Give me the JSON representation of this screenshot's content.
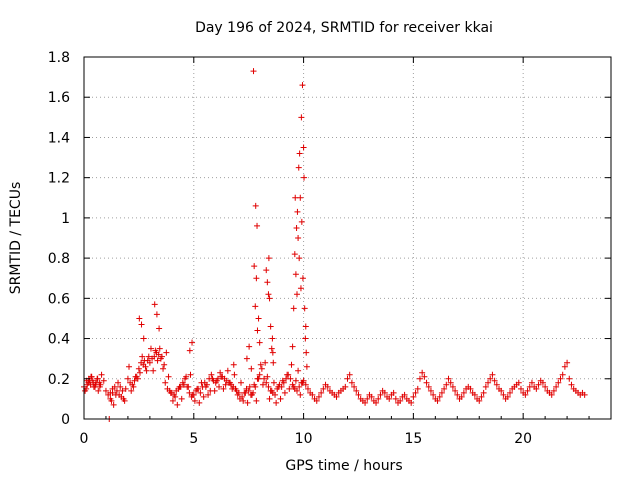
{
  "chart_data": {
    "type": "scatter",
    "title": "Day 196 of 2024, SRMTID for receiver kkai",
    "xlabel": "GPS time / hours",
    "ylabel": "SRMTID / TECUs",
    "xlim": [
      0,
      24
    ],
    "ylim": [
      0,
      1.8
    ],
    "xticks": [
      0,
      5,
      10,
      15,
      20
    ],
    "xtick_labels": [
      "0",
      "5",
      "10",
      "15",
      "20"
    ],
    "yticks": [
      0,
      0.2,
      0.4,
      0.6,
      0.8,
      1.0,
      1.2,
      1.4,
      1.6,
      1.8
    ],
    "ytick_labels": [
      "0",
      "0.2",
      "0.4",
      "0.6",
      "0.8",
      "1",
      "1.2",
      "1.4",
      "1.6",
      "1.8"
    ],
    "grid": true,
    "marker": "+",
    "marker_color": "#e00000",
    "series": [
      {
        "name": "SRMTID",
        "x": [
          0.0,
          0.1,
          0.2,
          0.3,
          0.4,
          0.5,
          0.6,
          0.7,
          0.8,
          0.9,
          1.0,
          1.1,
          1.2,
          1.3,
          1.4,
          1.5,
          1.6,
          1.7,
          1.8,
          1.9,
          2.0,
          2.1,
          2.2,
          2.3,
          2.4,
          2.5,
          2.6,
          2.7,
          2.8,
          2.9,
          3.0,
          3.1,
          3.2,
          3.3,
          3.4,
          3.5,
          3.6,
          3.7,
          3.8,
          3.9,
          4.0,
          4.1,
          4.2,
          4.3,
          4.4,
          4.5,
          4.6,
          4.7,
          4.8,
          4.9,
          5.0,
          5.1,
          5.2,
          5.3,
          5.4,
          5.5,
          5.6,
          5.7,
          5.8,
          5.9,
          6.0,
          6.1,
          6.2,
          6.3,
          6.4,
          6.5,
          6.6,
          6.7,
          6.8,
          6.9,
          7.0,
          7.1,
          7.2,
          7.3,
          7.4,
          7.5,
          7.6,
          7.7,
          7.8,
          7.9,
          8.0,
          8.1,
          8.2,
          8.3,
          8.4,
          8.5,
          8.6,
          8.7,
          8.8,
          8.9,
          9.0,
          9.1,
          9.2,
          9.3,
          9.4,
          9.5,
          9.6,
          9.7,
          9.8,
          9.9,
          10.0,
          10.1,
          10.2,
          10.3,
          10.4,
          10.5,
          10.6,
          10.7,
          10.8,
          10.9,
          11.0,
          11.1,
          11.2,
          11.3,
          11.4,
          11.5,
          11.6,
          11.7,
          11.8,
          11.9,
          12.0,
          12.1,
          12.2,
          12.3,
          12.4,
          12.5,
          12.6,
          12.7,
          12.8,
          12.9,
          13.0,
          13.1,
          13.2,
          13.3,
          13.4,
          13.5,
          13.6,
          13.7,
          13.8,
          13.9,
          14.0,
          14.1,
          14.2,
          14.3,
          14.4,
          14.5,
          14.6,
          14.7,
          14.8,
          14.9,
          15.0,
          15.1,
          15.2,
          15.3,
          15.4,
          15.5,
          15.6,
          15.7,
          15.8,
          15.9,
          16.0,
          16.1,
          16.2,
          16.3,
          16.4,
          16.5,
          16.6,
          16.7,
          16.8,
          16.9,
          17.0,
          17.1,
          17.2,
          17.3,
          17.4,
          17.5,
          17.6,
          17.7,
          17.8,
          17.9,
          18.0,
          18.1,
          18.2,
          18.3,
          18.4,
          18.5,
          18.6,
          18.7,
          18.8,
          18.9,
          19.0,
          19.1,
          19.2,
          19.3,
          19.4,
          19.5,
          19.6,
          19.7,
          19.8,
          19.9,
          20.0,
          20.1,
          20.2,
          20.3,
          20.4,
          20.5,
          20.6,
          20.7,
          20.8,
          20.9,
          21.0,
          21.1,
          21.2,
          21.3,
          21.4,
          21.5,
          21.6,
          21.7,
          21.8,
          21.9,
          22.0,
          22.1,
          22.2,
          22.3,
          22.4,
          22.5,
          22.6,
          22.7,
          22.8,
          0.05,
          0.15,
          0.25,
          0.35,
          0.45,
          0.55,
          0.65,
          0.75,
          1.15,
          1.2,
          1.25,
          1.3,
          1.35,
          1.45,
          1.55,
          1.65,
          1.75,
          1.85,
          2.05,
          2.15,
          2.25,
          2.35,
          2.45,
          2.55,
          2.65,
          2.75,
          2.85,
          2.95,
          3.05,
          3.15,
          3.25,
          3.35,
          3.45,
          3.55,
          3.65,
          3.75,
          3.85,
          3.95,
          4.05,
          4.15,
          4.25,
          4.35,
          4.45,
          4.55,
          4.65,
          4.75,
          4.85,
          4.95,
          5.05,
          5.15,
          5.25,
          5.35,
          5.45,
          5.55,
          5.65,
          5.75,
          5.85,
          5.95,
          6.05,
          6.15,
          6.25,
          6.35,
          6.45,
          6.55,
          6.65,
          6.75,
          6.85,
          6.95,
          7.05,
          7.15,
          7.25,
          7.35,
          7.45,
          7.55,
          7.65,
          7.75,
          7.85,
          7.95,
          8.05,
          8.15,
          8.25,
          8.35,
          8.45,
          8.55,
          8.65,
          8.75,
          8.85,
          8.95,
          9.05,
          9.15,
          9.25,
          9.35,
          9.45,
          9.55,
          9.65,
          9.75,
          9.85,
          9.95,
          0.12,
          0.22,
          0.32,
          0.42,
          0.52,
          0.62,
          0.72,
          2.52,
          2.62,
          2.72,
          3.22,
          3.32,
          3.42,
          4.82,
          4.92,
          6.82,
          7.42,
          7.52,
          7.62,
          7.72,
          7.75,
          7.8,
          7.82,
          7.85,
          7.88,
          7.9,
          7.95,
          8.0,
          8.3,
          8.35,
          8.4,
          8.42,
          8.45,
          8.5,
          8.55,
          8.58,
          8.6,
          8.62,
          9.5,
          9.55,
          9.6,
          9.62,
          9.65,
          9.68,
          9.7,
          9.72,
          9.75,
          9.78,
          9.8,
          9.82,
          9.85,
          9.88,
          9.9,
          9.92,
          9.95,
          9.97,
          10.0,
          10.02,
          10.05,
          10.08,
          10.1,
          10.12,
          10.15
        ],
        "y": [
          0.16,
          0.15,
          0.18,
          0.17,
          0.19,
          0.16,
          0.2,
          0.18,
          0.22,
          0.19,
          0.14,
          0.12,
          0.1,
          0.13,
          0.16,
          0.14,
          0.12,
          0.11,
          0.1,
          0.15,
          0.2,
          0.18,
          0.17,
          0.19,
          0.21,
          0.25,
          0.28,
          0.27,
          0.26,
          0.29,
          0.28,
          0.3,
          0.31,
          0.33,
          0.32,
          0.3,
          0.25,
          0.18,
          0.15,
          0.14,
          0.13,
          0.12,
          0.14,
          0.15,
          0.16,
          0.18,
          0.2,
          0.16,
          0.13,
          0.11,
          0.12,
          0.14,
          0.15,
          0.13,
          0.16,
          0.18,
          0.17,
          0.2,
          0.22,
          0.19,
          0.18,
          0.2,
          0.23,
          0.21,
          0.2,
          0.19,
          0.18,
          0.17,
          0.16,
          0.15,
          0.12,
          0.1,
          0.11,
          0.13,
          0.15,
          0.14,
          0.12,
          0.13,
          0.16,
          0.2,
          0.22,
          0.25,
          0.2,
          0.18,
          0.16,
          0.14,
          0.13,
          0.12,
          0.15,
          0.17,
          0.16,
          0.18,
          0.2,
          0.22,
          0.2,
          0.17,
          0.15,
          0.14,
          0.16,
          0.18,
          0.19,
          0.17,
          0.15,
          0.13,
          0.12,
          0.1,
          0.09,
          0.11,
          0.13,
          0.15,
          0.17,
          0.16,
          0.14,
          0.13,
          0.12,
          0.11,
          0.13,
          0.14,
          0.15,
          0.16,
          0.2,
          0.22,
          0.18,
          0.16,
          0.14,
          0.12,
          0.1,
          0.09,
          0.08,
          0.1,
          0.12,
          0.11,
          0.09,
          0.08,
          0.1,
          0.12,
          0.14,
          0.13,
          0.11,
          0.1,
          0.12,
          0.13,
          0.1,
          0.08,
          0.09,
          0.11,
          0.12,
          0.1,
          0.09,
          0.08,
          0.11,
          0.13,
          0.15,
          0.2,
          0.23,
          0.21,
          0.18,
          0.16,
          0.14,
          0.12,
          0.1,
          0.09,
          0.11,
          0.13,
          0.15,
          0.17,
          0.2,
          0.18,
          0.16,
          0.14,
          0.12,
          0.1,
          0.11,
          0.13,
          0.15,
          0.16,
          0.15,
          0.13,
          0.12,
          0.1,
          0.09,
          0.11,
          0.13,
          0.16,
          0.18,
          0.2,
          0.22,
          0.19,
          0.17,
          0.15,
          0.14,
          0.12,
          0.1,
          0.11,
          0.13,
          0.15,
          0.16,
          0.17,
          0.18,
          0.15,
          0.13,
          0.12,
          0.14,
          0.16,
          0.18,
          0.16,
          0.15,
          0.17,
          0.19,
          0.18,
          0.16,
          0.14,
          0.13,
          0.12,
          0.14,
          0.16,
          0.18,
          0.2,
          0.22,
          0.26,
          0.28,
          0.2,
          0.17,
          0.15,
          0.14,
          0.13,
          0.12,
          0.13,
          0.12,
          0.14,
          0.17,
          0.19,
          0.21,
          0.16,
          0.18,
          0.14,
          0.17,
          0.0,
          0.13,
          0.09,
          0.15,
          0.07,
          0.12,
          0.18,
          0.16,
          0.14,
          0.09,
          0.26,
          0.14,
          0.16,
          0.21,
          0.2,
          0.23,
          0.31,
          0.29,
          0.24,
          0.31,
          0.35,
          0.24,
          0.34,
          0.29,
          0.35,
          0.31,
          0.27,
          0.33,
          0.21,
          0.13,
          0.09,
          0.11,
          0.07,
          0.16,
          0.1,
          0.17,
          0.21,
          0.16,
          0.22,
          0.12,
          0.09,
          0.15,
          0.08,
          0.18,
          0.11,
          0.16,
          0.12,
          0.14,
          0.2,
          0.14,
          0.19,
          0.16,
          0.21,
          0.15,
          0.17,
          0.24,
          0.18,
          0.15,
          0.22,
          0.14,
          0.13,
          0.18,
          0.09,
          0.13,
          0.08,
          0.16,
          0.12,
          0.17,
          0.09,
          0.2,
          0.27,
          0.17,
          0.28,
          0.21,
          0.1,
          0.14,
          0.18,
          0.08,
          0.16,
          0.1,
          0.19,
          0.13,
          0.22,
          0.15,
          0.27,
          0.16,
          0.19,
          0.24,
          0.12,
          0.18,
          0.19,
          0.2,
          0.21,
          0.18,
          0.17,
          0.2,
          0.16,
          0.5,
          0.47,
          0.4,
          0.57,
          0.52,
          0.45,
          0.34,
          0.38,
          0.27,
          0.3,
          0.36,
          0.25,
          1.73,
          0.76,
          0.56,
          1.06,
          0.7,
          0.96,
          0.44,
          0.5,
          0.38,
          0.74,
          0.68,
          0.62,
          0.8,
          0.6,
          0.46,
          0.35,
          0.4,
          0.33,
          0.28,
          0.36,
          0.55,
          0.82,
          1.1,
          0.72,
          0.95,
          0.62,
          1.03,
          0.9,
          1.25,
          0.8,
          1.32,
          1.1,
          0.65,
          1.5,
          0.98,
          1.66,
          0.7,
          1.35,
          1.2,
          0.55,
          0.4,
          0.46,
          0.33,
          0.26
        ]
      }
    ]
  }
}
